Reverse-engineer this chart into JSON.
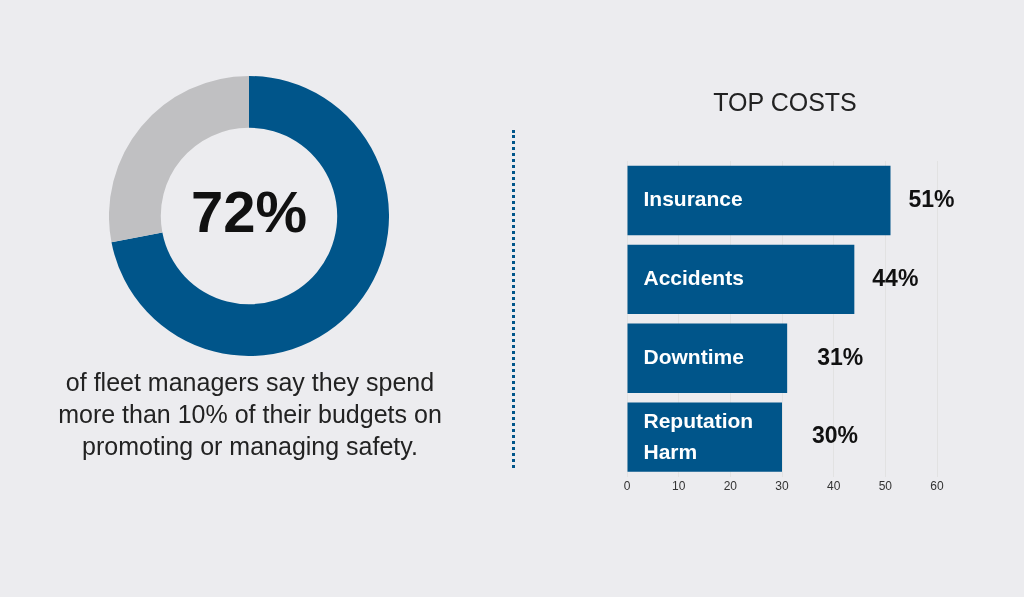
{
  "chart_data": [
    {
      "type": "donut",
      "categories": [
        null,
        null
      ],
      "values": [
        72,
        28
      ],
      "colors": [
        "#00558a",
        "#c0c0c2"
      ],
      "value_labels": [
        "72%",
        null
      ],
      "legend": false,
      "annotations": [
        "of fleet managers say they spend more than 10% of their budgets on promoting or managing safety."
      ]
    },
    {
      "type": "bar",
      "orientation": "horizontal",
      "title": "TOP COSTS",
      "categories": [
        "Insurance",
        "Accidents",
        "Downtime",
        "Reputation Harm"
      ],
      "values": [
        51,
        44,
        31,
        30
      ],
      "color": "#00558a",
      "value_labels": [
        "51%",
        "44%",
        "31%",
        "30%"
      ],
      "xlim": [
        0,
        60
      ],
      "xticks": [
        0,
        10,
        20,
        30,
        40,
        50,
        60
      ],
      "grid": "x",
      "legend": false
    }
  ]
}
